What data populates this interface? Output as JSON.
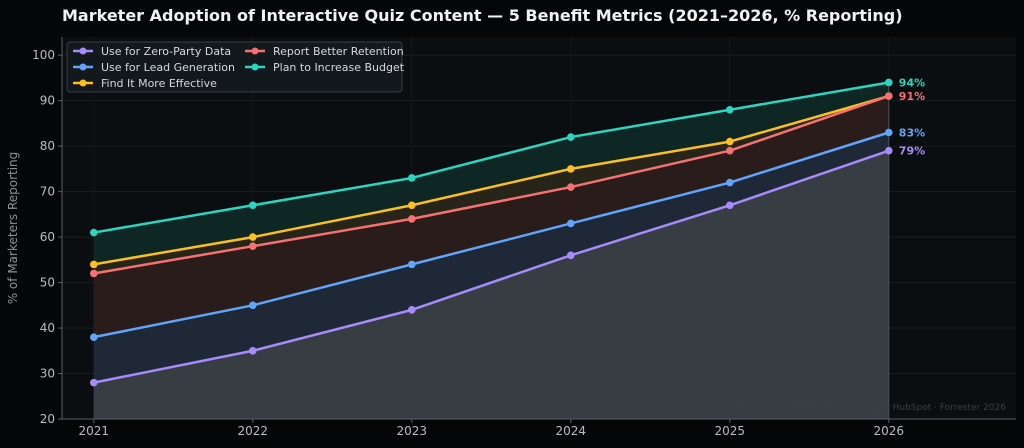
{
  "chart_data": {
    "type": "line",
    "title": "Marketer Adoption of Interactive Quiz Content — 5 Benefit Metrics (2021–2026, % Reporting)",
    "ylabel": "% of Marketers Reporting",
    "xlabel": "",
    "x": [
      "2021",
      "2022",
      "2023",
      "2024",
      "2025",
      "2026"
    ],
    "xlim": [
      2020.8,
      2026.8
    ],
    "ylim": [
      20,
      104
    ],
    "yticks": [
      20,
      30,
      40,
      50,
      60,
      70,
      80,
      90,
      100
    ],
    "grid": true,
    "legend_position": "top-left",
    "source": "Sources: CMI · Demand Gen Report · HubSpot · Forrester 2026",
    "series": [
      {
        "name": "Use for Zero-Party Data",
        "color": "#a78bfa",
        "values": [
          28,
          35,
          44,
          56,
          67,
          79
        ],
        "end_label": "79%",
        "fill_color": "#3b3f45"
      },
      {
        "name": "Use for Lead Generation",
        "color": "#60a5fa",
        "values": [
          38,
          45,
          54,
          63,
          72,
          83
        ],
        "end_label": "83%",
        "fill_color": "#1d2a3a"
      },
      {
        "name": "Find It More Effective",
        "color": "#fbbf24",
        "values": [
          54,
          60,
          67,
          75,
          81,
          91
        ],
        "end_label": "",
        "fill_color": "#2a2618"
      },
      {
        "name": "Report Better Retention",
        "color": "#f87171",
        "values": [
          52,
          58,
          64,
          71,
          79,
          91
        ],
        "end_label": "91%",
        "fill_color": "#2a1c1c"
      },
      {
        "name": "Plan to Increase Budget",
        "color": "#2dd4bf",
        "values": [
          61,
          67,
          73,
          82,
          88,
          94
        ],
        "end_label": "94%",
        "fill_color": "#0f2a27"
      }
    ]
  }
}
